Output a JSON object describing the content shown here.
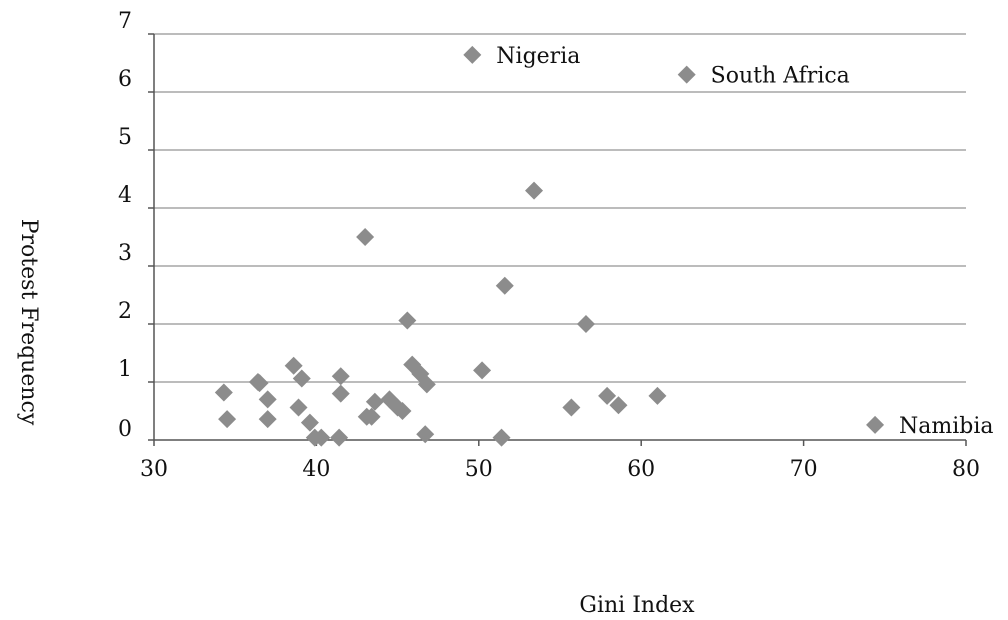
{
  "chart_data": {
    "type": "scatter",
    "title": "",
    "xlabel": "Gini Index",
    "ylabel": "Protest  Frequency",
    "xlim": [
      30,
      80
    ],
    "ylim": [
      0,
      7
    ],
    "x_ticks": [
      "30",
      "40",
      "50",
      "60",
      "70",
      "80"
    ],
    "y_ticks": [
      "0",
      "1",
      "2",
      "3",
      "4",
      "5",
      "6",
      "7"
    ],
    "grid": "horizontal",
    "legend": "none",
    "marker": "diamond",
    "marker_color": "#8c8c8c",
    "gridline_color": "#a6a6a6",
    "points": [
      {
        "x": 34.3,
        "y": 0.82
      },
      {
        "x": 34.5,
        "y": 0.36
      },
      {
        "x": 36.4,
        "y": 1.0
      },
      {
        "x": 36.5,
        "y": 0.98
      },
      {
        "x": 37.0,
        "y": 0.7
      },
      {
        "x": 37.0,
        "y": 0.36
      },
      {
        "x": 38.6,
        "y": 1.28
      },
      {
        "x": 38.9,
        "y": 0.56
      },
      {
        "x": 39.1,
        "y": 1.06
      },
      {
        "x": 39.6,
        "y": 0.3
      },
      {
        "x": 39.9,
        "y": 0.04
      },
      {
        "x": 40.3,
        "y": 0.04
      },
      {
        "x": 41.4,
        "y": 0.04
      },
      {
        "x": 41.5,
        "y": 1.1
      },
      {
        "x": 41.5,
        "y": 0.8
      },
      {
        "x": 43.0,
        "y": 3.5
      },
      {
        "x": 43.1,
        "y": 0.4
      },
      {
        "x": 43.4,
        "y": 0.4
      },
      {
        "x": 43.6,
        "y": 0.66
      },
      {
        "x": 44.5,
        "y": 0.7
      },
      {
        "x": 45.0,
        "y": 0.56
      },
      {
        "x": 45.3,
        "y": 0.5
      },
      {
        "x": 45.6,
        "y": 2.06
      },
      {
        "x": 45.9,
        "y": 1.3
      },
      {
        "x": 46.4,
        "y": 1.14
      },
      {
        "x": 46.7,
        "y": 0.1
      },
      {
        "x": 46.8,
        "y": 0.96
      },
      {
        "x": 49.6,
        "y": 6.64
      },
      {
        "x": 50.2,
        "y": 1.2
      },
      {
        "x": 51.4,
        "y": 0.04
      },
      {
        "x": 51.6,
        "y": 2.66
      },
      {
        "x": 53.4,
        "y": 4.3
      },
      {
        "x": 55.7,
        "y": 0.56
      },
      {
        "x": 56.6,
        "y": 2.0
      },
      {
        "x": 57.9,
        "y": 0.76
      },
      {
        "x": 58.6,
        "y": 0.6
      },
      {
        "x": 61.0,
        "y": 0.76
      },
      {
        "x": 62.8,
        "y": 6.3
      },
      {
        "x": 74.4,
        "y": 0.26
      }
    ],
    "annotations": [
      {
        "text": "Nigeria",
        "x": 49.6,
        "y": 6.64
      },
      {
        "text": "South Africa",
        "x": 62.8,
        "y": 6.3
      },
      {
        "text": "Namibia",
        "x": 74.4,
        "y": 0.26
      }
    ]
  }
}
